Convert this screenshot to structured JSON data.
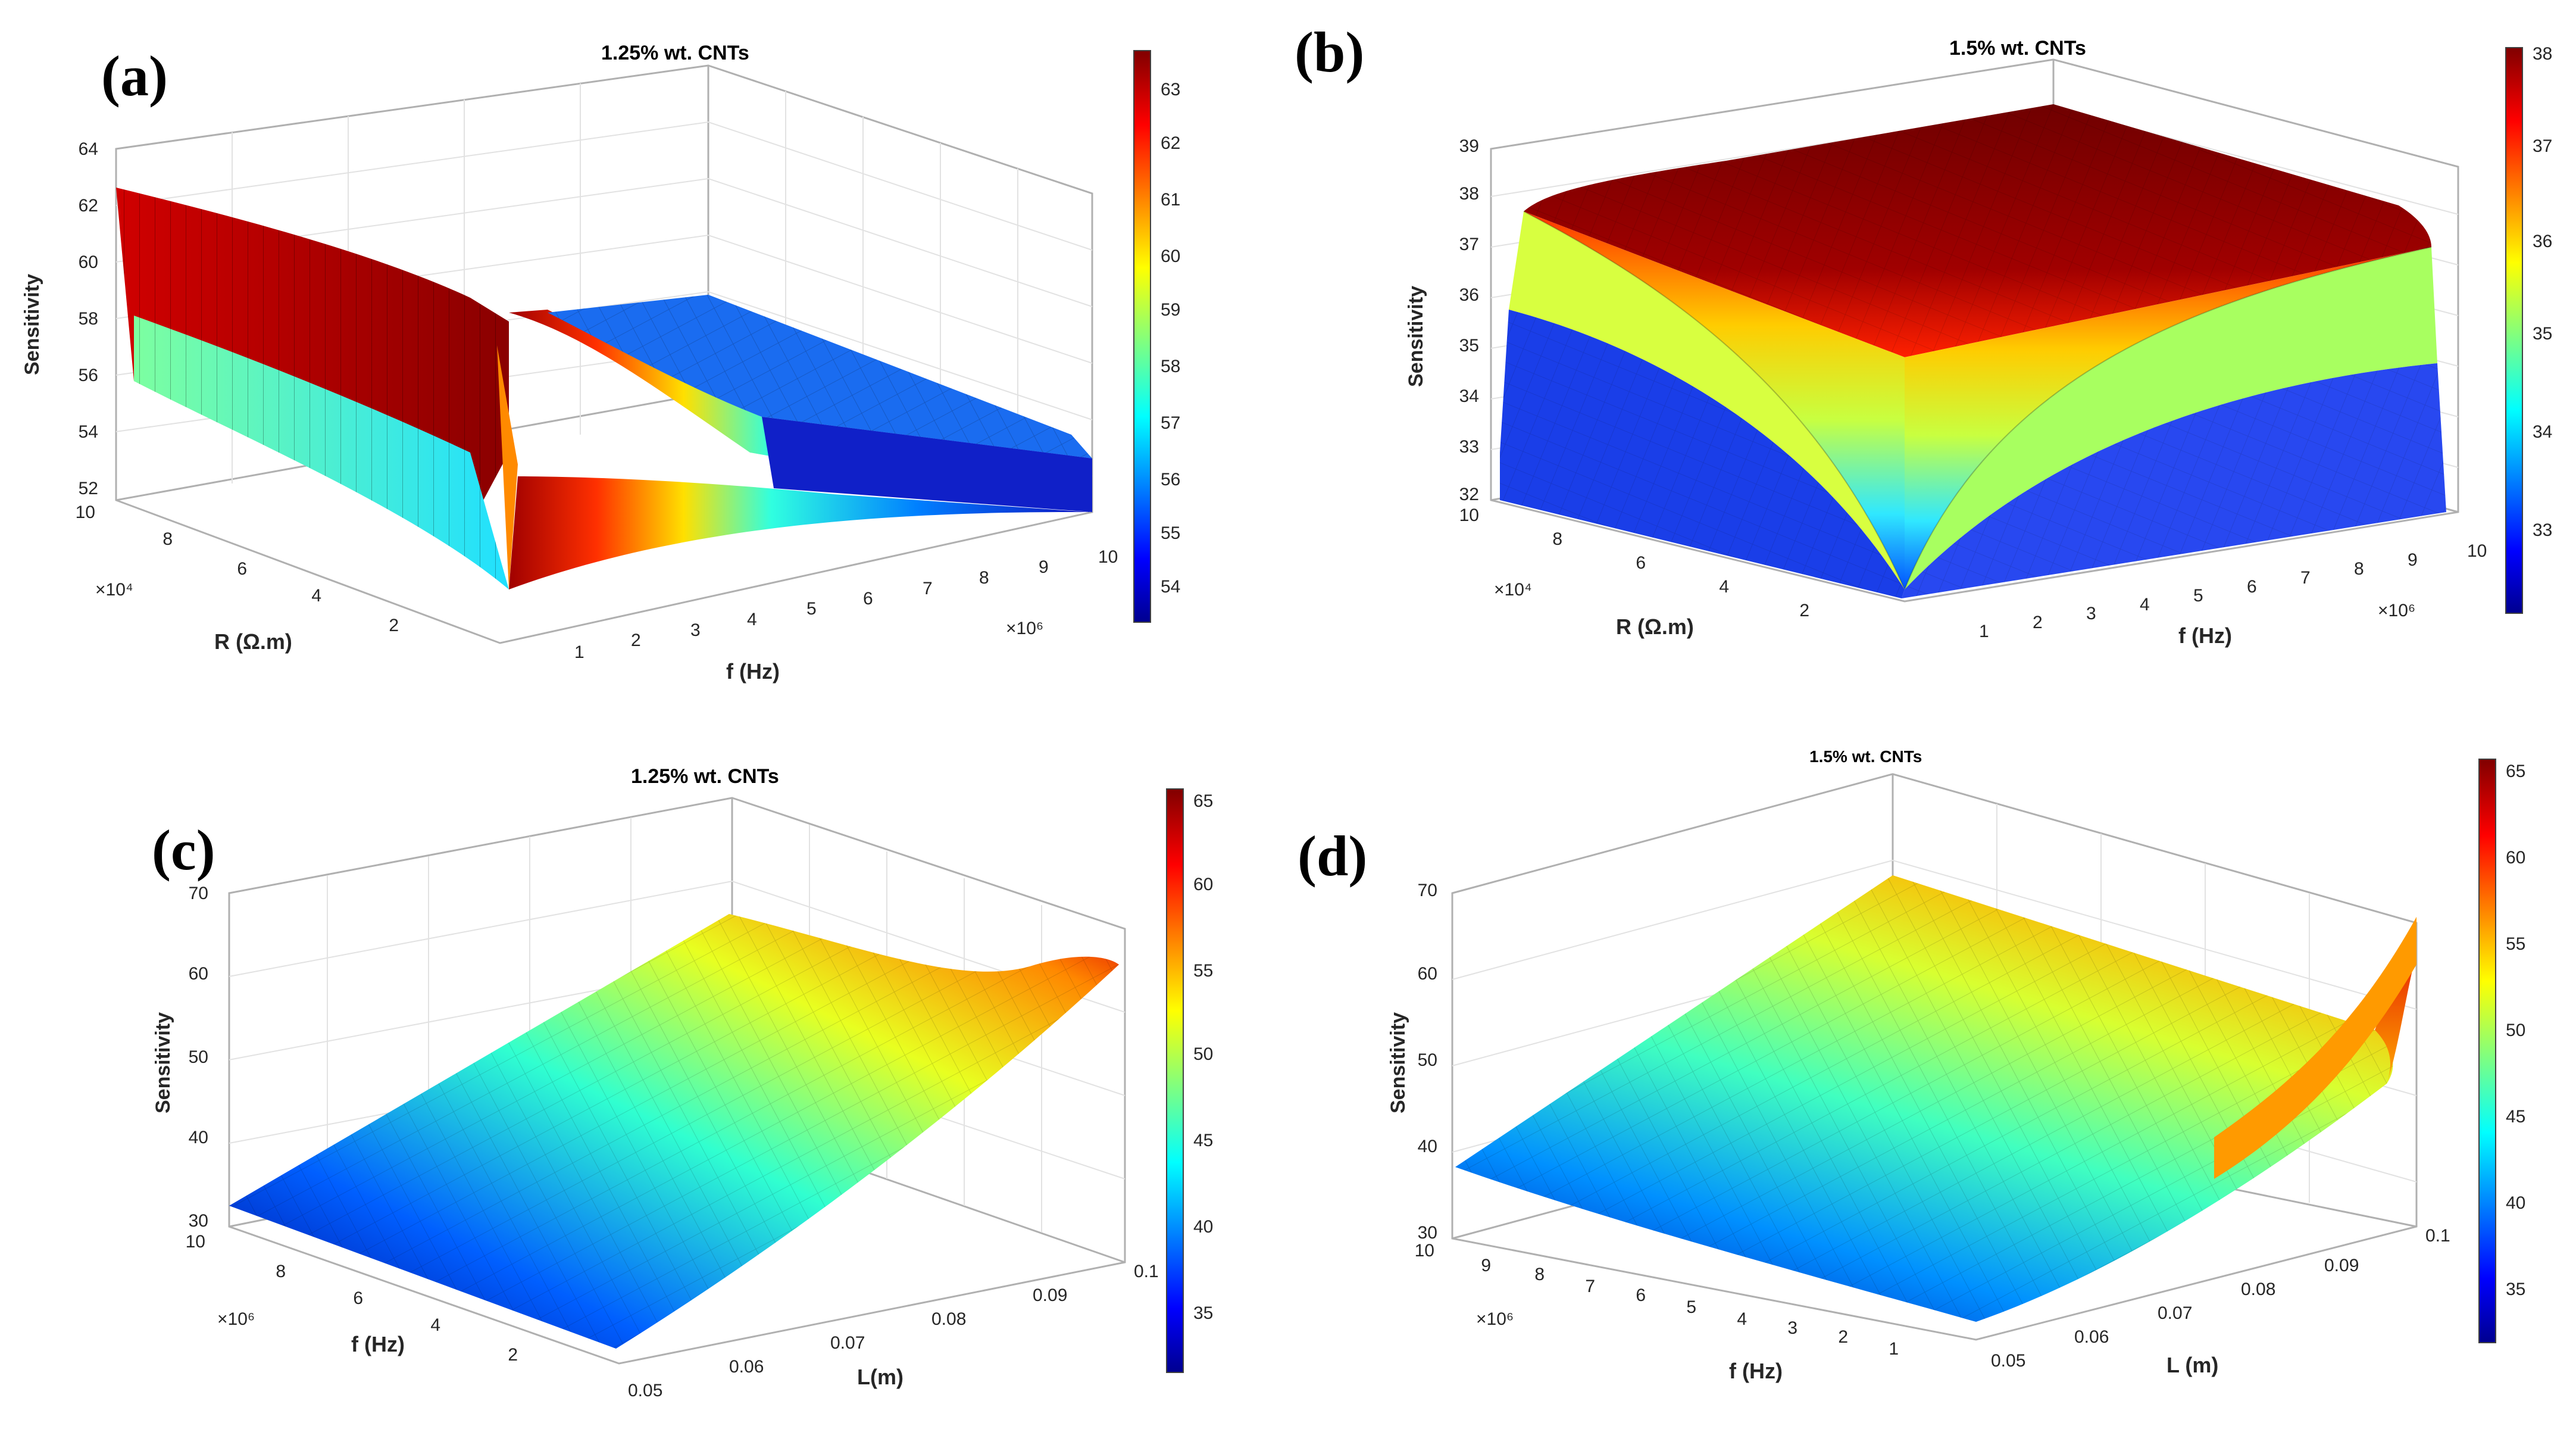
{
  "figure": {
    "panels": [
      "(a)",
      "(b)",
      "(c)",
      "(d)"
    ]
  },
  "chart_data": [
    {
      "panel": "(a)",
      "type": "surface",
      "title": "1.25% wt. CNTs",
      "zlabel": "Sensitivity",
      "ylabel": "R (Ω.m)",
      "xlabel": "f (Hz)",
      "y_multiplier": "×10⁴",
      "x_multiplier": "×10⁶",
      "z_ticks": [
        "52",
        "54",
        "56",
        "58",
        "60",
        "62",
        "64"
      ],
      "y_ticks": [
        "10",
        "8",
        "6",
        "4",
        "2"
      ],
      "x_ticks": [
        "1",
        "2",
        "3",
        "4",
        "5",
        "6",
        "7",
        "8",
        "9",
        "10"
      ],
      "zlim": [
        52,
        64
      ],
      "colorbar_ticks": [
        "54",
        "55",
        "56",
        "57",
        "58",
        "59",
        "60",
        "61",
        "62",
        "63"
      ],
      "colorbar_range": [
        53.4,
        63.7
      ],
      "colormap": "jet",
      "corner_values": {
        "back_left": 62.8,
        "front_left": 58.3,
        "notch_min": 52.5,
        "back_right": 53.0
      }
    },
    {
      "panel": "(b)",
      "type": "surface",
      "title": "1.5% wt. CNTs",
      "zlabel": "Sensitivity",
      "ylabel": "R (Ω.m)",
      "xlabel": "f (Hz)",
      "y_multiplier": "×10⁴",
      "x_multiplier": "×10⁶",
      "z_ticks": [
        "32",
        "33",
        "34",
        "35",
        "36",
        "37",
        "38",
        "39"
      ],
      "y_ticks": [
        "10",
        "8",
        "6",
        "4",
        "2"
      ],
      "x_ticks": [
        "1",
        "2",
        "3",
        "4",
        "5",
        "6",
        "7",
        "8",
        "9",
        "10"
      ],
      "zlim": [
        32,
        39
      ],
      "colorbar_ticks": [
        "33",
        "34",
        "35",
        "36",
        "37",
        "38"
      ],
      "colorbar_range": [
        32.1,
        38.0
      ],
      "colormap": "jet",
      "corner_values": {
        "plateau": 38.0,
        "skirt_mid": 36.0,
        "skirt_low": 34.5,
        "notch_min": 32.1
      }
    },
    {
      "panel": "(c)",
      "type": "surface",
      "title": "1.25% wt. CNTs",
      "zlabel": "Sensitivity",
      "ylabel": "f (Hz)",
      "xlabel": "L(m)",
      "y_multiplier": "×10⁶",
      "z_ticks": [
        "30",
        "40",
        "50",
        "60",
        "70"
      ],
      "y_ticks": [
        "10",
        "8",
        "6",
        "4",
        "2"
      ],
      "x_ticks": [
        "0.05",
        "0.06",
        "0.07",
        "0.08",
        "0.09",
        "0.1"
      ],
      "zlim": [
        30,
        70
      ],
      "colorbar_ticks": [
        "35",
        "40",
        "45",
        "50",
        "55",
        "60",
        "65"
      ],
      "colorbar_range": [
        32,
        66
      ],
      "colormap": "jet",
      "trend": "Sensitivity rises from ~32 at L = 0.05 m to ~65 at L = 0.1 m; nearly constant across f"
    },
    {
      "panel": "(d)",
      "type": "surface",
      "title": "1.5% wt. CNTs",
      "zlabel": "Sensitivity",
      "ylabel": "f (Hz)",
      "xlabel": "L (m)",
      "y_multiplier": "×10⁶",
      "z_ticks": [
        "30",
        "40",
        "50",
        "60",
        "70"
      ],
      "y_ticks": [
        "10",
        "9",
        "8",
        "7",
        "6",
        "5",
        "4",
        "3",
        "2",
        "1"
      ],
      "x_ticks": [
        "0.05",
        "0.06",
        "0.07",
        "0.08",
        "0.09",
        "0.1"
      ],
      "zlim": [
        30,
        70
      ],
      "colorbar_ticks": [
        "35",
        "40",
        "45",
        "50",
        "55",
        "60",
        "65"
      ],
      "colorbar_range": [
        32,
        66
      ],
      "colormap": "jet",
      "trend": "Sensitivity ~37 at low f / low L, rising to ~52 along L and a sharp rise to ~65 near f → 0, L = 0.1 m"
    }
  ]
}
